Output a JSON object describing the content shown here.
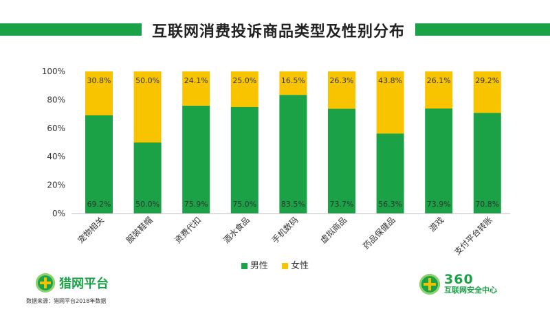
{
  "chart_data": {
    "type": "bar",
    "stacked": true,
    "title": "互联网消费投诉商品类型及性别分布",
    "categories": [
      "宠物相关",
      "服装鞋帽",
      "资费代扣",
      "酒水食品",
      "手机数码",
      "虚拟商品",
      "药品保健品",
      "游戏",
      "支付平台转账"
    ],
    "series": [
      {
        "name": "男性",
        "color": "#1ba246",
        "values": [
          69.2,
          50.0,
          75.9,
          75.0,
          83.5,
          73.7,
          56.3,
          73.9,
          70.8
        ],
        "labels": [
          "69.2%",
          "50.0%",
          "75.9%",
          "75.0%",
          "83.5%",
          "73.7%",
          "56.3%",
          "73.9%",
          "70.8%"
        ]
      },
      {
        "name": "女性",
        "color": "#f8c400",
        "values": [
          30.8,
          50.0,
          24.1,
          25.0,
          16.5,
          26.3,
          43.8,
          26.1,
          29.2
        ],
        "labels": [
          "30.8%",
          "50.0%",
          "24.1%",
          "25.0%",
          "16.5%",
          "26.3%",
          "43.8%",
          "26.1%",
          "29.2%"
        ]
      }
    ],
    "yticks": [
      "0%",
      "20%",
      "40%",
      "60%",
      "80%",
      "100%"
    ],
    "ylim": [
      0,
      100
    ],
    "grid": false,
    "legend_position": "bottom"
  },
  "branding": {
    "left_logo": "猎网平台",
    "source": "数据来源：猎网平台2018年数据",
    "right_logo_number": "360",
    "right_logo_org": "互联网安全中心"
  }
}
